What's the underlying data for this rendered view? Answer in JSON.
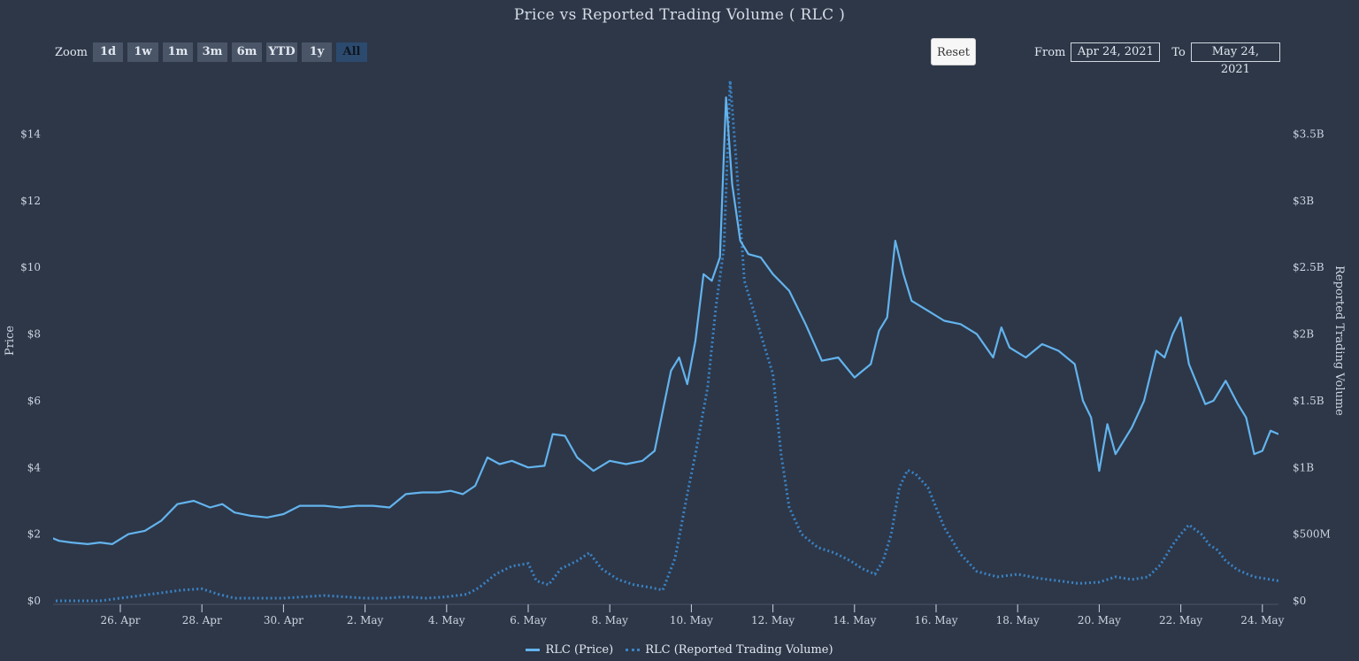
{
  "title": "Price vs Reported Trading Volume ( RLC )",
  "zoom": {
    "label": "Zoom",
    "buttons": [
      "1d",
      "1w",
      "1m",
      "3m",
      "6m",
      "YTD",
      "1y",
      "All"
    ],
    "active": "All"
  },
  "reset_label": "Reset",
  "range": {
    "from_label": "From",
    "from_value": "Apr 24, 2021",
    "to_label": "To",
    "to_value": "May 24, 2021"
  },
  "colors": {
    "background": "#2d3748",
    "price": "#63b3ed",
    "volume": "#3b82c4",
    "text": "#cbd5e0"
  },
  "chart_data": {
    "type": "line",
    "title": "Price vs Reported Trading Volume ( RLC )",
    "ylabel": "Price",
    "y2label": "Reported Trading Volume",
    "xlim": [
      0,
      30.2
    ],
    "ylim": [
      0,
      15.5
    ],
    "y2lim": [
      0,
      3.875
    ],
    "x_ticks": [
      {
        "x": 1,
        "label": "26. Apr"
      },
      {
        "x": 3,
        "label": "28. Apr"
      },
      {
        "x": 5,
        "label": "30. Apr"
      },
      {
        "x": 7,
        "label": "2. May"
      },
      {
        "x": 9,
        "label": "4. May"
      },
      {
        "x": 11,
        "label": "6. May"
      },
      {
        "x": 13,
        "label": "8. May"
      },
      {
        "x": 15,
        "label": "10. May"
      },
      {
        "x": 17,
        "label": "12. May"
      },
      {
        "x": 19,
        "label": "14. May"
      },
      {
        "x": 21,
        "label": "16. May"
      },
      {
        "x": 23,
        "label": "18. May"
      },
      {
        "x": 25,
        "label": "20. May"
      },
      {
        "x": 27,
        "label": "22. May"
      },
      {
        "x": 29,
        "label": "24. May"
      }
    ],
    "y_ticks": [
      {
        "v": 0,
        "label": "$0"
      },
      {
        "v": 2,
        "label": "$2"
      },
      {
        "v": 4,
        "label": "$4"
      },
      {
        "v": 6,
        "label": "$6"
      },
      {
        "v": 8,
        "label": "$8"
      },
      {
        "v": 10,
        "label": "$10"
      },
      {
        "v": 12,
        "label": "$12"
      },
      {
        "v": 14,
        "label": "$14"
      }
    ],
    "y2_ticks": [
      {
        "v": 0,
        "label": "$0"
      },
      {
        "v": 0.5,
        "label": "$500M"
      },
      {
        "v": 1,
        "label": "$1B"
      },
      {
        "v": 1.5,
        "label": "$1.5B"
      },
      {
        "v": 2,
        "label": "$2B"
      },
      {
        "v": 2.5,
        "label": "$2.5B"
      },
      {
        "v": 3,
        "label": "$3B"
      },
      {
        "v": 3.5,
        "label": "$3.5B"
      }
    ],
    "series": [
      {
        "name": "RLC (Price)",
        "axis": "left",
        "style": "solid",
        "x": [
          -0.8,
          -0.5,
          -0.2,
          0.2,
          0.5,
          0.8,
          1.2,
          1.6,
          2.0,
          2.4,
          2.8,
          3.2,
          3.5,
          3.8,
          4.2,
          4.6,
          5.0,
          5.4,
          5.7,
          6.0,
          6.4,
          6.8,
          7.2,
          7.6,
          8.0,
          8.4,
          8.8,
          9.1,
          9.4,
          9.7,
          10.0,
          10.3,
          10.6,
          11.0,
          11.4,
          11.6,
          11.9,
          12.2,
          12.6,
          13.0,
          13.4,
          13.8,
          14.1,
          14.3,
          14.5,
          14.7,
          14.9,
          15.1,
          15.3,
          15.5,
          15.7,
          15.85,
          16.0,
          16.2,
          16.4,
          16.7,
          17.0,
          17.4,
          17.8,
          18.2,
          18.6,
          19.0,
          19.2,
          19.4,
          19.6,
          19.8,
          20.0,
          20.2,
          20.4,
          20.8,
          21.2,
          21.6,
          22.0,
          22.4,
          22.6,
          22.8,
          23.2,
          23.6,
          24.0,
          24.4,
          24.6,
          24.8,
          25.0,
          25.2,
          25.4,
          25.8,
          26.1,
          26.4,
          26.6,
          26.8,
          27.0,
          27.2,
          27.4,
          27.6,
          27.8,
          28.1,
          28.4,
          28.6,
          28.8,
          29.0,
          29.2,
          29.4
        ],
        "values": [
          1.95,
          1.8,
          1.75,
          1.7,
          1.75,
          1.7,
          2.0,
          2.1,
          2.4,
          2.9,
          3.0,
          2.8,
          2.9,
          2.65,
          2.55,
          2.5,
          2.6,
          2.85,
          2.85,
          2.85,
          2.8,
          2.85,
          2.85,
          2.8,
          3.2,
          3.25,
          3.25,
          3.3,
          3.2,
          3.45,
          4.3,
          4.1,
          4.2,
          4.0,
          4.05,
          5.0,
          4.95,
          4.3,
          3.9,
          4.2,
          4.1,
          4.2,
          4.5,
          5.7,
          6.9,
          7.3,
          6.5,
          7.8,
          9.8,
          9.6,
          10.3,
          15.1,
          12.5,
          10.8,
          10.4,
          10.3,
          9.8,
          9.3,
          8.3,
          7.2,
          7.3,
          6.7,
          6.9,
          7.1,
          8.1,
          8.5,
          10.8,
          9.8,
          9.0,
          8.7,
          8.4,
          8.3,
          8.0,
          7.3,
          8.2,
          7.6,
          7.3,
          7.7,
          7.5,
          7.1,
          6.0,
          5.5,
          3.9,
          5.3,
          4.4,
          5.2,
          6.0,
          7.5,
          7.3,
          8.0,
          8.5,
          7.1,
          6.5,
          5.9,
          6.0,
          6.6,
          5.9,
          5.5,
          4.4,
          4.5,
          5.1,
          5.0
        ]
      },
      {
        "name": "RLC (Reported Trading Volume)",
        "axis": "right",
        "style": "dotted",
        "x": [
          -0.8,
          0.0,
          0.5,
          1.0,
          1.5,
          2.0,
          2.5,
          3.0,
          3.4,
          3.8,
          4.2,
          5.0,
          5.5,
          6.0,
          6.5,
          7.0,
          7.5,
          8.0,
          8.5,
          9.0,
          9.5,
          9.8,
          10.2,
          10.6,
          11.0,
          11.2,
          11.5,
          11.8,
          12.2,
          12.5,
          12.8,
          13.2,
          13.6,
          14.0,
          14.3,
          14.6,
          14.9,
          15.1,
          15.4,
          15.6,
          15.8,
          15.95,
          16.1,
          16.3,
          16.5,
          16.8,
          17.0,
          17.2,
          17.4,
          17.7,
          18.1,
          18.5,
          18.9,
          19.2,
          19.5,
          19.7,
          19.9,
          20.1,
          20.3,
          20.5,
          20.8,
          21.2,
          21.6,
          22.0,
          22.5,
          23.0,
          23.5,
          24.0,
          24.5,
          25.0,
          25.4,
          25.8,
          26.2,
          26.5,
          26.8,
          27.0,
          27.2,
          27.5,
          27.7,
          27.9,
          28.1,
          28.4,
          28.8,
          29.2,
          29.4
        ],
        "values": [
          0.0,
          0.0,
          0.0,
          0.02,
          0.04,
          0.06,
          0.08,
          0.09,
          0.05,
          0.02,
          0.02,
          0.02,
          0.03,
          0.04,
          0.03,
          0.02,
          0.02,
          0.03,
          0.02,
          0.03,
          0.05,
          0.1,
          0.2,
          0.26,
          0.28,
          0.15,
          0.12,
          0.24,
          0.3,
          0.36,
          0.24,
          0.16,
          0.12,
          0.1,
          0.08,
          0.32,
          0.8,
          1.1,
          1.6,
          2.2,
          2.65,
          3.9,
          3.3,
          2.4,
          2.2,
          1.9,
          1.7,
          1.1,
          0.7,
          0.5,
          0.4,
          0.36,
          0.3,
          0.24,
          0.2,
          0.3,
          0.5,
          0.85,
          0.98,
          0.95,
          0.85,
          0.55,
          0.35,
          0.22,
          0.18,
          0.2,
          0.17,
          0.15,
          0.13,
          0.14,
          0.18,
          0.16,
          0.18,
          0.27,
          0.42,
          0.5,
          0.57,
          0.5,
          0.42,
          0.38,
          0.3,
          0.23,
          0.18,
          0.16,
          0.15
        ]
      }
    ],
    "legend": "bottom-center",
    "grid": false
  }
}
